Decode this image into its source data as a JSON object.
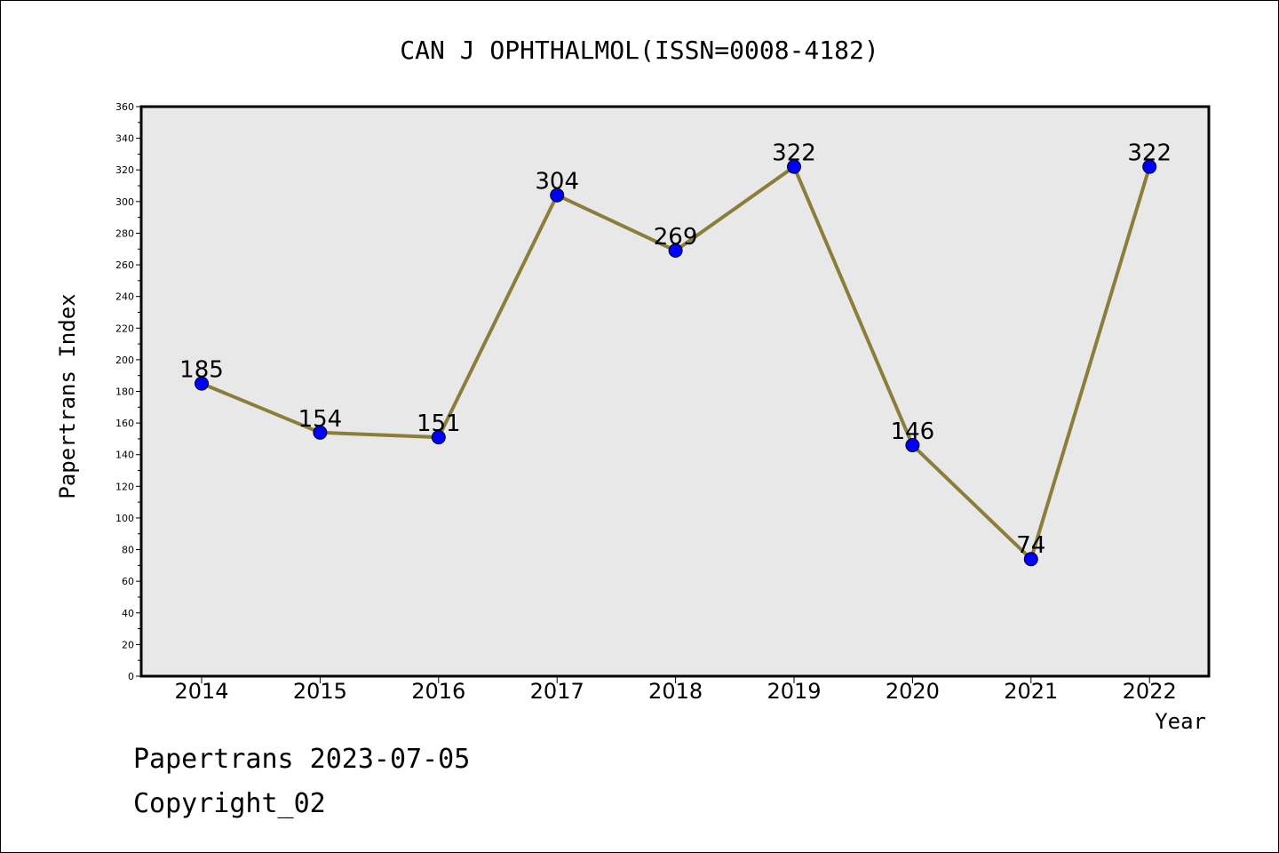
{
  "chart_data": {
    "type": "line",
    "title": "CAN J OPHTHALMOL(ISSN=0008-4182)",
    "xlabel": "Year",
    "ylabel": "Papertrans Index",
    "categories": [
      "2014",
      "2015",
      "2016",
      "2017",
      "2018",
      "2019",
      "2020",
      "2021",
      "2022"
    ],
    "series": [
      {
        "values": [
          185,
          154,
          151,
          304,
          269,
          322,
          146,
          74,
          322
        ]
      }
    ],
    "data_labels": [
      "185",
      "154",
      "151",
      "304",
      "269",
      "322",
      "146",
      "74",
      "322"
    ],
    "ylim": [
      0,
      360
    ],
    "y_ticks": [
      "0",
      "20",
      "40",
      "60",
      "80",
      "100",
      "120",
      "140",
      "160",
      "180",
      "200",
      "220",
      "240",
      "260",
      "280",
      "300",
      "320",
      "340",
      "360"
    ],
    "grid": false,
    "colors": {
      "line": "#8b7d3a",
      "marker": "#0000ff",
      "plot_bg": "#e8e8e8"
    }
  },
  "footer": {
    "line1": "Papertrans 2023-07-05",
    "line2": "Copyright_02"
  }
}
